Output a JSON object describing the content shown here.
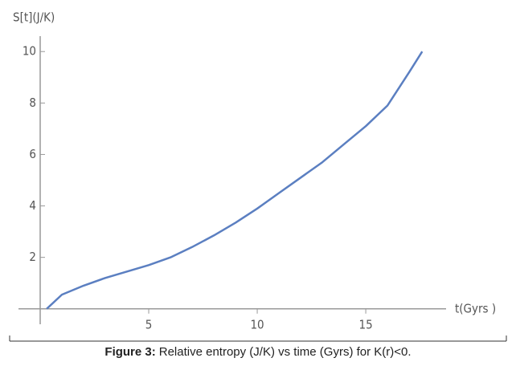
{
  "chart_data": {
    "type": "line",
    "y_label": "S[t](J/K)",
    "x_label": "t(Gyrs )",
    "x": [
      0.3,
      1,
      2,
      3,
      4,
      5,
      6,
      7,
      8,
      9,
      10,
      11,
      12,
      13,
      14,
      15,
      16,
      17,
      17.6
    ],
    "series": [
      {
        "color": "#5b7fc1",
        "values": [
          0,
          0.55,
          0.9,
          1.2,
          1.45,
          1.7,
          2.0,
          2.4,
          2.85,
          3.35,
          3.9,
          4.5,
          5.1,
          5.7,
          6.4,
          7.1,
          7.9,
          9.2,
          10
        ]
      }
    ],
    "xlim": [
      -1,
      18.7
    ],
    "ylim": [
      -0.6,
      10.6
    ],
    "xticks": [
      5,
      10,
      15
    ],
    "yticks": [
      2,
      4,
      6,
      8,
      10
    ]
  },
  "caption": {
    "label": "Figure 3:",
    "text": "Relative entropy (J/K) vs time (Gyrs) for K(r)<0."
  }
}
